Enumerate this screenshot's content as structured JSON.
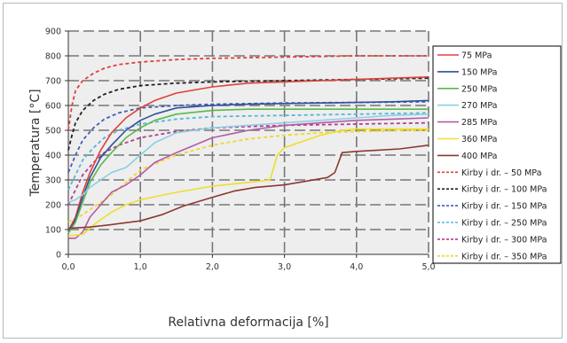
{
  "chart_data": {
    "type": "line",
    "title": "",
    "xlabel": "Relativna deformacija [%]",
    "ylabel": "Temperatura [°C]",
    "xlim": [
      0,
      5
    ],
    "ylim": [
      0,
      900
    ],
    "x_ticks": [
      0,
      1,
      2,
      3,
      4,
      5
    ],
    "x_tick_labels": [
      "0,0",
      "1,0",
      "2,0",
      "3,0",
      "4,0",
      "5,0"
    ],
    "y_ticks": [
      0,
      100,
      200,
      300,
      400,
      500,
      600,
      700,
      800,
      900
    ],
    "y_tick_labels": [
      "0",
      "100",
      "200",
      "300",
      "400",
      "500",
      "600",
      "700",
      "800",
      "900"
    ],
    "grid": true,
    "legend_position": "right",
    "series": [
      {
        "name": "75 MPa",
        "color": "#e0403a",
        "style": "solid",
        "x": [
          0.0,
          0.1,
          0.2,
          0.3,
          0.45,
          0.6,
          0.8,
          1.0,
          1.2,
          1.5,
          2.0,
          2.5,
          3.0,
          3.5,
          4.0,
          4.5,
          5.0
        ],
        "y": [
          95,
          150,
          250,
          330,
          420,
          490,
          550,
          590,
          620,
          650,
          675,
          690,
          695,
          700,
          705,
          710,
          715
        ]
      },
      {
        "name": "150 MPa",
        "color": "#2f4f9c",
        "style": "solid",
        "x": [
          0.0,
          0.1,
          0.2,
          0.3,
          0.45,
          0.6,
          0.8,
          1.0,
          1.2,
          1.5,
          2.0,
          2.5,
          3.0,
          3.5,
          4.0,
          4.5,
          5.0
        ],
        "y": [
          90,
          140,
          230,
          310,
          390,
          440,
          500,
          540,
          565,
          590,
          600,
          605,
          608,
          610,
          612,
          615,
          620
        ]
      },
      {
        "name": "250 MPa",
        "color": "#59b94d",
        "style": "solid",
        "x": [
          0.0,
          0.1,
          0.2,
          0.3,
          0.45,
          0.6,
          0.8,
          1.0,
          1.2,
          1.5,
          2.0,
          2.5,
          3.0,
          3.5,
          4.0,
          4.5,
          5.0
        ],
        "y": [
          85,
          130,
          210,
          290,
          360,
          410,
          470,
          510,
          540,
          565,
          580,
          585,
          585,
          585,
          585,
          585,
          585
        ]
      },
      {
        "name": "270 MPa",
        "color": "#8ccfe6",
        "style": "solid",
        "x": [
          0.0,
          0.1,
          0.2,
          0.3,
          0.45,
          0.6,
          0.8,
          1.0,
          1.2,
          1.5,
          2.0,
          2.5,
          3.0,
          3.5,
          4.0,
          4.5,
          5.0
        ],
        "y": [
          210,
          220,
          240,
          270,
          300,
          330,
          350,
          400,
          450,
          490,
          510,
          520,
          530,
          540,
          550,
          560,
          565
        ]
      },
      {
        "name": "285 MPa",
        "color": "#b55aa6",
        "style": "solid",
        "x": [
          0.0,
          0.1,
          0.2,
          0.3,
          0.45,
          0.6,
          0.8,
          1.0,
          1.2,
          1.5,
          2.0,
          2.5,
          3.0,
          3.5,
          4.0,
          4.5,
          5.0
        ],
        "y": [
          65,
          65,
          90,
          150,
          200,
          250,
          280,
          320,
          370,
          410,
          470,
          500,
          520,
          530,
          540,
          545,
          550
        ]
      },
      {
        "name": "360 MPa",
        "color": "#ecdf2a",
        "style": "solid",
        "x": [
          0.0,
          0.2,
          0.4,
          0.6,
          0.8,
          1.0,
          1.5,
          2.0,
          2.5,
          2.8,
          2.9,
          3.0,
          3.2,
          3.5,
          3.8,
          4.0,
          4.5,
          5.0
        ],
        "y": [
          75,
          80,
          130,
          170,
          200,
          220,
          250,
          275,
          290,
          300,
          400,
          430,
          450,
          480,
          500,
          505,
          505,
          505
        ]
      },
      {
        "name": "400 MPa",
        "color": "#8b3a2e",
        "style": "solid",
        "x": [
          0.0,
          0.3,
          0.6,
          1.0,
          1.3,
          1.6,
          2.0,
          2.3,
          2.6,
          3.0,
          3.3,
          3.6,
          3.7,
          3.8,
          4.0,
          4.3,
          4.6,
          5.0
        ],
        "y": [
          105,
          110,
          120,
          135,
          160,
          195,
          230,
          255,
          270,
          280,
          295,
          310,
          330,
          410,
          415,
          420,
          425,
          440
        ]
      },
      {
        "name": "Kirby i dr. – 50 MPa",
        "color": "#e0403a",
        "style": "dashed",
        "x": [
          0.0,
          0.05,
          0.1,
          0.2,
          0.35,
          0.5,
          0.7,
          1.0,
          1.5,
          2.0,
          3.0,
          4.0,
          5.0
        ],
        "y": [
          500,
          600,
          660,
          700,
          730,
          750,
          765,
          775,
          785,
          790,
          795,
          800,
          800
        ]
      },
      {
        "name": "Kirby i dr. – 100 MPa",
        "color": "#222222",
        "style": "dashed",
        "x": [
          0.0,
          0.05,
          0.1,
          0.2,
          0.35,
          0.5,
          0.7,
          1.0,
          1.5,
          2.0,
          3.0,
          4.0,
          5.0
        ],
        "y": [
          420,
          480,
          530,
          580,
          620,
          645,
          665,
          680,
          690,
          695,
          700,
          705,
          710
        ]
      },
      {
        "name": "Kirby i dr. – 150 MPa",
        "color": "#3f5eb5",
        "style": "dashed",
        "x": [
          0.0,
          0.1,
          0.2,
          0.35,
          0.5,
          0.7,
          1.0,
          1.5,
          2.0,
          3.0,
          4.0,
          5.0
        ],
        "y": [
          330,
          400,
          460,
          510,
          545,
          570,
          590,
          600,
          605,
          610,
          612,
          615
        ]
      },
      {
        "name": "Kirby i dr. – 250 MPa",
        "color": "#57b5d9",
        "style": "dashed",
        "x": [
          0.0,
          0.1,
          0.2,
          0.35,
          0.5,
          0.7,
          1.0,
          1.5,
          2.0,
          3.0,
          4.0,
          5.0
        ],
        "y": [
          260,
          320,
          380,
          430,
          470,
          500,
          525,
          545,
          555,
          560,
          565,
          570
        ]
      },
      {
        "name": "Kirby i dr. – 300 MPa",
        "color": "#b13f8e",
        "style": "dashed",
        "x": [
          0.0,
          0.1,
          0.2,
          0.35,
          0.5,
          0.7,
          1.0,
          1.5,
          2.0,
          3.0,
          4.0,
          5.0
        ],
        "y": [
          200,
          260,
          320,
          370,
          410,
          440,
          470,
          495,
          510,
          520,
          525,
          530
        ]
      },
      {
        "name": "Kirby i dr. – 350 MPa",
        "color": "#f0d52c",
        "style": "dashed",
        "x": [
          0.0,
          0.2,
          0.4,
          0.6,
          0.8,
          1.0,
          1.5,
          2.0,
          2.5,
          3.0,
          3.5,
          4.0,
          4.5,
          5.0
        ],
        "y": [
          130,
          160,
          200,
          240,
          290,
          340,
          400,
          440,
          465,
          480,
          490,
          495,
          498,
          500
        ]
      }
    ]
  }
}
